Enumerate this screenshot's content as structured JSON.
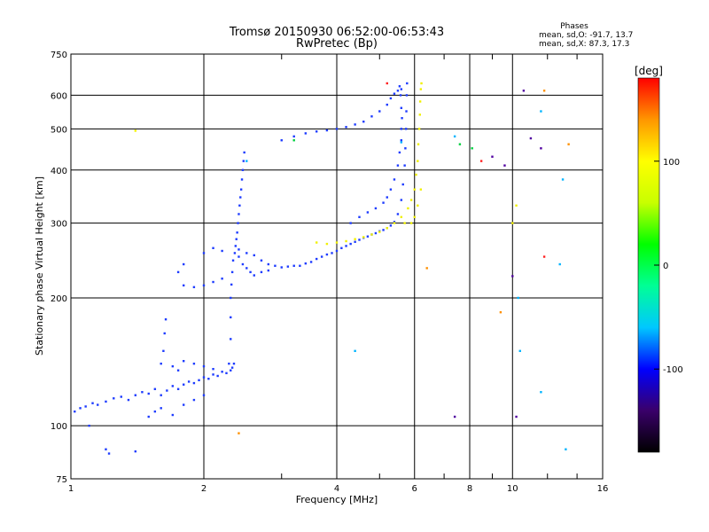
{
  "chart_data": {
    "type": "scatter",
    "title": "Tromsø 20150930 06:52:00-06:53:43",
    "subtitle": "RwPretec (Bp)",
    "stats": {
      "heading": "Phases",
      "line_o": "mean, sd,O: -91.7, 13.7",
      "line_x": "mean, sd,X:  87.3, 17.3"
    },
    "xlabel": "Frequency [MHz]",
    "ylabel": "Stationary phase Virtual Height [km]",
    "x_scale": "log",
    "y_scale": "log",
    "xlim": [
      1,
      16
    ],
    "ylim": [
      75,
      750
    ],
    "x_ticks": [
      1,
      2,
      4,
      6,
      8,
      10,
      16
    ],
    "x_tick_labels": [
      "1",
      "2",
      "4",
      "6",
      "8",
      "10",
      "16"
    ],
    "y_ticks": [
      75,
      100,
      200,
      300,
      400,
      500,
      600,
      750
    ],
    "y_tick_labels": [
      "75",
      "100",
      "200",
      "300",
      "400",
      "500",
      "600",
      "750"
    ],
    "grid": true,
    "colorbar": {
      "label": "[deg]",
      "range": [
        -180,
        180
      ],
      "ticks": [
        100,
        0,
        -100
      ],
      "tick_labels": [
        "100",
        "0",
        "-100"
      ],
      "colors": [
        "#000000",
        "#3a006a",
        "#0000ff",
        "#00c8ff",
        "#00ff96",
        "#00ff00",
        "#c8ff00",
        "#ffff00",
        "#ff9600",
        "#ff0000"
      ]
    },
    "point_colors": {
      "o_trace": "#1e3cff",
      "x_trace": "#f0f000",
      "cyan": "#00b4ff",
      "green": "#00d040",
      "red": "#ff2020",
      "orange": "#ff9000",
      "purple": "#5000a0"
    },
    "series": [
      {
        "color_key": "o_trace",
        "points": [
          [
            1.02,
            108
          ],
          [
            1.05,
            110
          ],
          [
            1.08,
            111
          ],
          [
            1.12,
            113
          ],
          [
            1.15,
            112
          ],
          [
            1.2,
            114
          ],
          [
            1.25,
            116
          ],
          [
            1.3,
            117
          ],
          [
            1.35,
            115
          ],
          [
            1.4,
            118
          ],
          [
            1.45,
            120
          ],
          [
            1.5,
            119
          ],
          [
            1.55,
            122
          ],
          [
            1.6,
            118
          ],
          [
            1.65,
            121
          ],
          [
            1.7,
            124
          ],
          [
            1.75,
            122
          ],
          [
            1.8,
            125
          ],
          [
            1.85,
            127
          ],
          [
            1.9,
            126
          ],
          [
            1.95,
            128
          ],
          [
            2.0,
            130
          ],
          [
            2.05,
            129
          ],
          [
            2.1,
            132
          ],
          [
            2.15,
            131
          ],
          [
            2.2,
            134
          ],
          [
            2.25,
            133
          ],
          [
            2.3,
            135
          ],
          [
            2.32,
            137
          ],
          [
            2.34,
            140
          ],
          [
            1.6,
            140
          ],
          [
            1.62,
            150
          ],
          [
            1.63,
            165
          ],
          [
            1.64,
            178
          ],
          [
            1.7,
            138
          ],
          [
            1.75,
            135
          ],
          [
            1.8,
            142
          ],
          [
            1.9,
            140
          ],
          [
            2.0,
            138
          ],
          [
            2.1,
            136
          ],
          [
            1.1,
            100
          ],
          [
            1.2,
            88
          ],
          [
            1.22,
            86
          ],
          [
            1.4,
            87
          ],
          [
            1.5,
            105
          ],
          [
            1.55,
            108
          ],
          [
            1.6,
            110
          ],
          [
            1.7,
            106
          ],
          [
            1.8,
            112
          ],
          [
            1.9,
            115
          ],
          [
            2.0,
            118
          ],
          [
            2.28,
            140
          ],
          [
            2.3,
            160
          ],
          [
            2.3,
            180
          ],
          [
            2.3,
            200
          ],
          [
            2.31,
            215
          ],
          [
            2.32,
            230
          ],
          [
            2.33,
            245
          ],
          [
            2.35,
            255
          ],
          [
            2.36,
            265
          ],
          [
            2.37,
            275
          ],
          [
            2.38,
            285
          ],
          [
            2.39,
            300
          ],
          [
            2.4,
            315
          ],
          [
            2.41,
            330
          ],
          [
            2.42,
            345
          ],
          [
            2.43,
            360
          ],
          [
            2.44,
            380
          ],
          [
            2.45,
            400
          ],
          [
            2.46,
            420
          ],
          [
            2.47,
            440
          ],
          [
            2.4,
            250
          ],
          [
            2.45,
            240
          ],
          [
            2.5,
            235
          ],
          [
            2.55,
            230
          ],
          [
            2.6,
            226
          ],
          [
            2.7,
            230
          ],
          [
            2.8,
            232
          ],
          [
            2.4,
            260
          ],
          [
            2.5,
            255
          ],
          [
            2.6,
            252
          ],
          [
            2.7,
            245
          ],
          [
            2.8,
            240
          ],
          [
            2.9,
            238
          ],
          [
            3.0,
            236
          ],
          [
            3.1,
            237
          ],
          [
            3.2,
            238
          ],
          [
            3.3,
            238
          ],
          [
            3.4,
            241
          ],
          [
            3.5,
            243
          ],
          [
            3.6,
            247
          ],
          [
            3.7,
            250
          ],
          [
            3.8,
            253
          ],
          [
            3.9,
            255
          ],
          [
            4.0,
            258
          ],
          [
            4.1,
            262
          ],
          [
            4.2,
            265
          ],
          [
            4.3,
            268
          ],
          [
            4.4,
            271
          ],
          [
            4.5,
            274
          ],
          [
            4.6,
            277
          ],
          [
            4.7,
            279
          ],
          [
            4.8,
            282
          ],
          [
            4.9,
            284
          ],
          [
            5.0,
            287
          ],
          [
            5.1,
            289
          ],
          [
            5.2,
            292
          ],
          [
            5.3,
            296
          ],
          [
            5.4,
            302
          ],
          [
            5.5,
            315
          ],
          [
            5.6,
            340
          ],
          [
            5.65,
            370
          ],
          [
            5.7,
            410
          ],
          [
            5.72,
            450
          ],
          [
            5.74,
            500
          ],
          [
            5.75,
            550
          ],
          [
            5.76,
            600
          ],
          [
            5.77,
            640
          ],
          [
            4.3,
            300
          ],
          [
            4.5,
            310
          ],
          [
            4.7,
            318
          ],
          [
            4.9,
            325
          ],
          [
            5.1,
            335
          ],
          [
            5.2,
            345
          ],
          [
            5.3,
            360
          ],
          [
            5.4,
            380
          ],
          [
            5.5,
            410
          ],
          [
            5.55,
            440
          ],
          [
            5.6,
            470
          ],
          [
            5.6,
            500
          ],
          [
            5.62,
            530
          ],
          [
            5.6,
            560
          ],
          [
            5.58,
            600
          ],
          [
            5.55,
            630
          ],
          [
            1.8,
            214
          ],
          [
            1.9,
            212
          ],
          [
            2.0,
            214
          ],
          [
            2.1,
            218
          ],
          [
            2.2,
            222
          ],
          [
            1.75,
            230
          ],
          [
            1.8,
            240
          ],
          [
            2.0,
            255
          ],
          [
            2.1,
            262
          ],
          [
            2.2,
            258
          ],
          [
            3.0,
            470
          ],
          [
            3.2,
            480
          ],
          [
            3.4,
            488
          ],
          [
            3.6,
            493
          ],
          [
            3.8,
            496
          ],
          [
            4.0,
            500
          ],
          [
            4.2,
            505
          ],
          [
            4.4,
            512
          ],
          [
            4.6,
            520
          ],
          [
            4.8,
            535
          ],
          [
            5.0,
            550
          ],
          [
            5.2,
            570
          ],
          [
            5.3,
            590
          ],
          [
            5.4,
            605
          ],
          [
            5.5,
            615
          ],
          [
            5.6,
            620
          ]
        ]
      },
      {
        "color_key": "x_trace",
        "points": [
          [
            3.6,
            270
          ],
          [
            3.8,
            268
          ],
          [
            4.0,
            270
          ],
          [
            4.2,
            272
          ],
          [
            4.4,
            275
          ],
          [
            4.6,
            278
          ],
          [
            4.8,
            282
          ],
          [
            5.0,
            286
          ],
          [
            5.2,
            292
          ],
          [
            5.4,
            300
          ],
          [
            5.6,
            310
          ],
          [
            5.8,
            325
          ],
          [
            5.9,
            340
          ],
          [
            6.0,
            360
          ],
          [
            6.05,
            390
          ],
          [
            6.1,
            420
          ],
          [
            6.12,
            460
          ],
          [
            6.15,
            500
          ],
          [
            6.17,
            540
          ],
          [
            6.18,
            580
          ],
          [
            6.2,
            620
          ],
          [
            6.22,
            640
          ],
          [
            5.9,
            300
          ],
          [
            6.0,
            310
          ],
          [
            5.7,
            300
          ],
          [
            6.1,
            330
          ],
          [
            6.2,
            360
          ],
          [
            1.4,
            495
          ],
          [
            10.2,
            330
          ],
          [
            10.0,
            300
          ]
        ]
      },
      {
        "color_key": "cyan",
        "points": [
          [
            2.5,
            420
          ],
          [
            4.4,
            150
          ],
          [
            5.6,
            465
          ],
          [
            7.4,
            480
          ],
          [
            10.3,
            200
          ],
          [
            10.4,
            150
          ],
          [
            11.6,
            120
          ],
          [
            13.0,
            380
          ],
          [
            13.2,
            88
          ],
          [
            11.6,
            550
          ],
          [
            12.8,
            240
          ]
        ]
      },
      {
        "color_key": "green",
        "points": [
          [
            3.2,
            470
          ],
          [
            7.6,
            460
          ],
          [
            8.1,
            450
          ]
        ]
      },
      {
        "color_key": "red",
        "points": [
          [
            5.2,
            640
          ],
          [
            8.5,
            420
          ],
          [
            11.8,
            250
          ]
        ]
      },
      {
        "color_key": "orange",
        "points": [
          [
            2.4,
            96
          ],
          [
            6.4,
            235
          ],
          [
            9.4,
            185
          ],
          [
            11.8,
            615
          ],
          [
            13.4,
            460
          ]
        ]
      },
      {
        "color_key": "purple",
        "points": [
          [
            10.6,
            615
          ],
          [
            11.0,
            475
          ],
          [
            11.6,
            450
          ],
          [
            9.6,
            410
          ],
          [
            9.0,
            430
          ],
          [
            10.0,
            225
          ],
          [
            7.4,
            105
          ],
          [
            10.2,
            105
          ]
        ]
      }
    ]
  }
}
